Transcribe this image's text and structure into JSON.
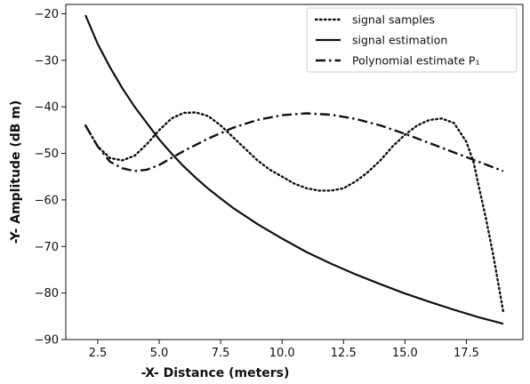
{
  "chart_data": {
    "type": "line",
    "title": "",
    "xlabel": "-X-   Distance (meters)",
    "ylabel": "-Y-  Amplitude (dB m)",
    "xlim": [
      1.2,
      19.8
    ],
    "ylim": [
      -90,
      -18
    ],
    "xticks": [
      2.5,
      5.0,
      7.5,
      10.0,
      12.5,
      15.0,
      17.5
    ],
    "xtick_labels": [
      "2.5",
      "5.0",
      "7.5",
      "10.0",
      "12.5",
      "15.0",
      "17.5"
    ],
    "yticks": [
      -90,
      -80,
      -70,
      -60,
      -50,
      -40,
      -30,
      -20
    ],
    "ytick_labels": [
      "−90",
      "−80",
      "−70",
      "−60",
      "−50",
      "−40",
      "−30",
      "−20"
    ],
    "grid": false,
    "legend_position": "top-right",
    "series": [
      {
        "name": "signal samples",
        "style": "dotted",
        "color": "#111111",
        "x": [
          2.0,
          2.5,
          3.0,
          3.5,
          4.0,
          4.5,
          5.0,
          5.5,
          6.0,
          6.5,
          7.0,
          7.5,
          8.0,
          8.5,
          9.0,
          9.5,
          10.0,
          10.5,
          11.0,
          11.5,
          12.0,
          12.5,
          13.0,
          13.5,
          14.0,
          14.5,
          15.0,
          15.5,
          16.0,
          16.5,
          17.0,
          17.5,
          17.8,
          18.0,
          18.3,
          18.6,
          19.0
        ],
        "y": [
          -44,
          -48.5,
          -51,
          -51.5,
          -50.5,
          -48,
          -45,
          -42.5,
          -41.3,
          -41.2,
          -42,
          -44,
          -46.5,
          -49,
          -51.5,
          -53.5,
          -55,
          -56.5,
          -57.5,
          -58,
          -58,
          -57.5,
          -56,
          -54,
          -51.5,
          -48.5,
          -46,
          -44,
          -42.8,
          -42.5,
          -43.5,
          -47.5,
          -52,
          -57,
          -64,
          -72,
          -84
        ]
      },
      {
        "name": "signal estimation",
        "style": "solid",
        "color": "#111111",
        "x": [
          2.0,
          2.5,
          3.0,
          3.5,
          4.0,
          4.5,
          5.0,
          5.5,
          6.0,
          6.5,
          7.0,
          7.5,
          8.0,
          9.0,
          10.0,
          11.0,
          12.0,
          13.0,
          14.0,
          15.0,
          16.0,
          17.0,
          18.0,
          19.0
        ],
        "y": [
          -20.3,
          -26.5,
          -31.5,
          -36,
          -40,
          -43.5,
          -47,
          -50,
          -52.8,
          -55.3,
          -57.6,
          -59.7,
          -61.7,
          -65.2,
          -68.3,
          -71.2,
          -73.7,
          -76,
          -78.1,
          -80.1,
          -81.9,
          -83.6,
          -85.2,
          -86.6
        ]
      },
      {
        "name": "Polynomial estimate P₁",
        "style": "dashdot",
        "color": "#111111",
        "x": [
          2.0,
          2.5,
          3.0,
          3.5,
          4.0,
          4.5,
          5.0,
          6.0,
          7.0,
          8.0,
          9.0,
          10.0,
          11.0,
          12.0,
          13.0,
          14.0,
          15.0,
          16.0,
          17.0,
          18.0,
          19.0
        ],
        "y": [
          -44,
          -48.5,
          -51.8,
          -53.2,
          -53.8,
          -53.5,
          -52.5,
          -49.5,
          -46.8,
          -44.5,
          -42.8,
          -41.8,
          -41.4,
          -41.7,
          -42.6,
          -44,
          -45.8,
          -47.8,
          -49.8,
          -51.8,
          -53.8
        ]
      }
    ]
  }
}
